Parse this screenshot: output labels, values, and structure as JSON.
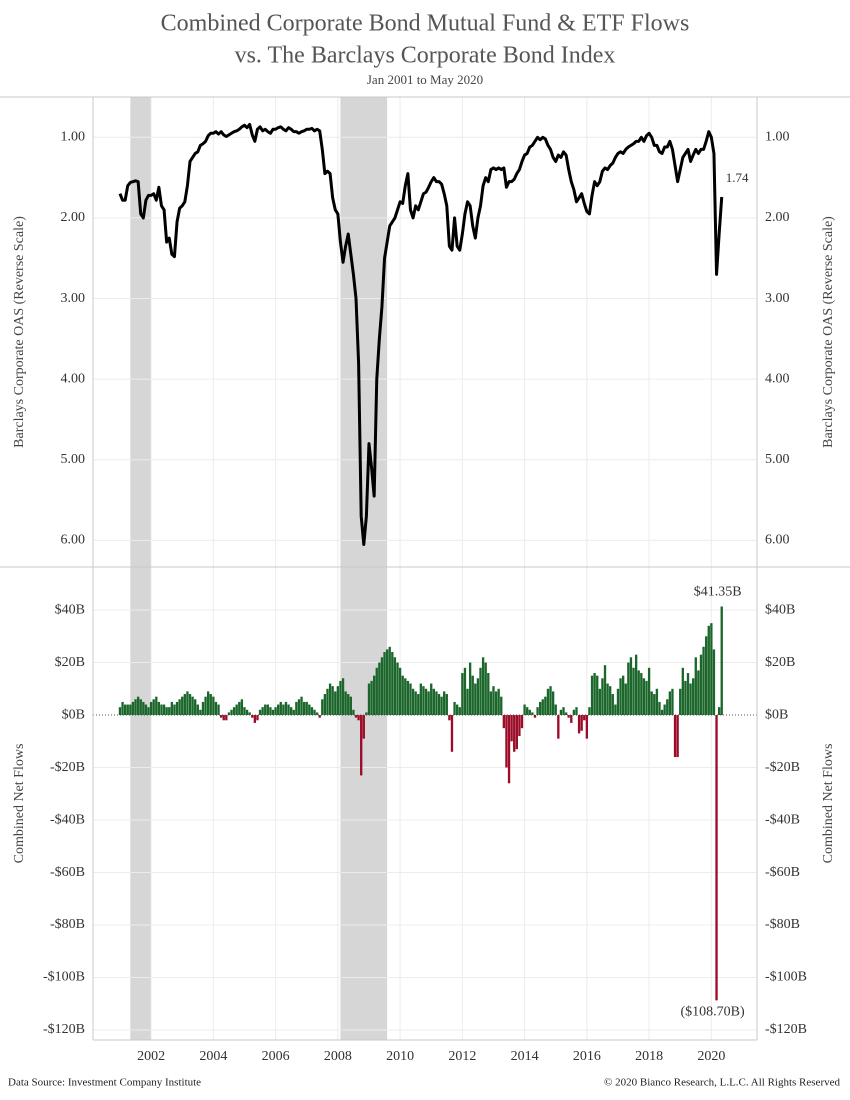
{
  "chart_data": {
    "type": "combo",
    "title": [
      "Combined Corporate Bond Mutual Fund & ETF Flows",
      "vs. The Barclays Corporate Bond Index"
    ],
    "subtitle": "Jan 2001 to May 2020",
    "source": "Data Source: Investment Company Institute",
    "copyright": "© 2020 Bianco Research, L.L.C. All Rights Reserved",
    "categories": [
      null,
      null,
      null,
      null,
      null,
      null,
      null,
      null,
      null,
      null,
      null,
      null,
      "2002",
      null,
      null,
      null,
      null,
      null,
      null,
      null,
      null,
      null,
      null,
      null,
      null,
      null,
      null,
      null,
      null,
      null,
      null,
      null,
      null,
      null,
      null,
      null,
      "2004",
      null,
      null,
      null,
      null,
      null,
      null,
      null,
      null,
      null,
      null,
      null,
      null,
      null,
      null,
      null,
      null,
      null,
      null,
      null,
      null,
      null,
      null,
      null,
      "2006",
      null,
      null,
      null,
      null,
      null,
      null,
      null,
      null,
      null,
      null,
      null,
      null,
      null,
      null,
      null,
      null,
      null,
      null,
      null,
      null,
      null,
      null,
      null,
      "2008",
      null,
      null,
      null,
      null,
      null,
      null,
      null,
      null,
      null,
      null,
      null,
      null,
      null,
      null,
      null,
      null,
      null,
      null,
      null,
      null,
      null,
      null,
      null,
      "2010",
      null,
      null,
      null,
      null,
      null,
      null,
      null,
      null,
      null,
      null,
      null,
      null,
      null,
      null,
      null,
      null,
      null,
      null,
      null,
      null,
      null,
      null,
      null,
      "2012",
      null,
      null,
      null,
      null,
      null,
      null,
      null,
      null,
      null,
      null,
      null,
      null,
      null,
      null,
      null,
      null,
      null,
      null,
      null,
      null,
      null,
      null,
      null,
      "2014",
      null,
      null,
      null,
      null,
      null,
      null,
      null,
      null,
      null,
      null,
      null,
      null,
      null,
      null,
      null,
      null,
      null,
      null,
      null,
      null,
      null,
      null,
      null,
      "2016",
      null,
      null,
      null,
      null,
      null,
      null,
      null,
      null,
      null,
      null,
      null,
      null,
      null,
      null,
      null,
      null,
      null,
      null,
      null,
      null,
      null,
      null,
      null,
      "2018",
      null,
      null,
      null,
      null,
      null,
      null,
      null,
      null,
      null,
      null,
      null,
      null,
      null,
      null,
      null,
      null,
      null,
      null,
      null,
      null,
      null,
      null,
      null,
      "2020",
      null,
      null,
      null,
      null
    ],
    "grid": true,
    "panels": [
      {
        "ylabel": "Barclays Corporate OAS (Reverse Scale)",
        "reverse": true,
        "ylim": [
          0.5,
          6.33
        ],
        "yticks": [
          {
            "value": 1,
            "label": "1.00"
          },
          {
            "value": 2,
            "label": "2.00"
          },
          {
            "value": 3,
            "label": "3.00"
          },
          {
            "value": 4,
            "label": "4.00"
          },
          {
            "value": 5,
            "label": "5.00"
          },
          {
            "value": 6,
            "label": "6.00"
          }
        ],
        "series": [
          {
            "type": "line",
            "color": "#000000",
            "values": [
              1.7,
              1.78,
              1.78,
              1.6,
              1.56,
              1.55,
              1.54,
              1.55,
              1.95,
              2.0,
              1.78,
              1.72,
              1.72,
              1.7,
              1.78,
              1.62,
              1.85,
              1.9,
              2.3,
              2.25,
              2.45,
              2.48,
              2.05,
              1.88,
              1.85,
              1.8,
              1.6,
              1.3,
              1.25,
              1.2,
              1.18,
              1.1,
              1.08,
              1.05,
              0.98,
              0.95,
              0.95,
              0.93,
              0.96,
              0.93,
              0.97,
              0.99,
              0.97,
              0.95,
              0.93,
              0.92,
              0.9,
              0.87,
              0.85,
              0.88,
              0.84,
              0.97,
              1.05,
              0.9,
              0.87,
              0.92,
              0.9,
              0.93,
              0.95,
              0.9,
              0.9,
              0.88,
              0.87,
              0.9,
              0.92,
              0.88,
              0.9,
              0.93,
              0.93,
              0.95,
              0.93,
              0.92,
              0.9,
              0.9,
              0.89,
              0.92,
              0.9,
              0.92,
              1.15,
              1.45,
              1.42,
              1.45,
              1.75,
              1.9,
              1.95,
              2.3,
              2.55,
              2.35,
              2.2,
              2.45,
              2.7,
              3.0,
              3.8,
              5.7,
              6.05,
              5.7,
              4.8,
              5.1,
              5.45,
              4.0,
              3.5,
              3.1,
              2.5,
              2.3,
              2.1,
              2.05,
              2.0,
              1.9,
              1.8,
              1.82,
              1.6,
              1.45,
              1.9,
              2.0,
              1.85,
              1.9,
              1.8,
              1.7,
              1.68,
              1.62,
              1.55,
              1.5,
              1.55,
              1.55,
              1.58,
              1.7,
              1.85,
              2.35,
              2.4,
              2.0,
              2.35,
              2.4,
              2.2,
              1.95,
              1.8,
              1.85,
              2.1,
              2.25,
              2.0,
              1.85,
              1.6,
              1.5,
              1.55,
              1.4,
              1.38,
              1.4,
              1.38,
              1.4,
              1.38,
              1.62,
              1.55,
              1.55,
              1.52,
              1.45,
              1.4,
              1.3,
              1.22,
              1.2,
              1.12,
              1.1,
              1.05,
              1.0,
              1.03,
              1.0,
              1.02,
              1.1,
              1.15,
              1.25,
              1.3,
              1.22,
              1.25,
              1.18,
              1.22,
              1.4,
              1.55,
              1.65,
              1.8,
              1.75,
              1.7,
              1.82,
              1.92,
              1.95,
              1.72,
              1.55,
              1.6,
              1.55,
              1.42,
              1.38,
              1.4,
              1.35,
              1.32,
              1.25,
              1.2,
              1.18,
              1.2,
              1.15,
              1.12,
              1.1,
              1.08,
              1.05,
              1.05,
              1.0,
              1.05,
              0.98,
              0.95,
              1.0,
              1.1,
              1.1,
              1.18,
              1.2,
              1.12,
              1.12,
              1.05,
              1.15,
              1.35,
              1.55,
              1.4,
              1.25,
              1.2,
              1.15,
              1.3,
              1.22,
              1.15,
              1.2,
              1.15,
              1.15,
              1.05,
              0.93,
              1.0,
              1.2,
              2.7,
              2.2,
              1.74
            ],
            "value_labels": {
              "232": "1.74"
            }
          }
        ]
      },
      {
        "ylabel": "Combined Net Flows",
        "reverse": false,
        "ylim": [
          -123.8,
          56.4
        ],
        "yticks": [
          {
            "value": 40,
            "label": "$40B"
          },
          {
            "value": 20,
            "label": "$20B"
          },
          {
            "value": 0,
            "label": "$0B"
          },
          {
            "value": -20,
            "label": "-$20B"
          },
          {
            "value": -40,
            "label": "-$40B"
          },
          {
            "value": -60,
            "label": "-$60B"
          },
          {
            "value": -80,
            "label": "-$80B"
          },
          {
            "value": -100,
            "label": "-$100B"
          },
          {
            "value": -120,
            "label": "-$120B"
          }
        ],
        "series": [
          {
            "type": "bar",
            "color": "#1b662b",
            "negative_color": "#9a0c28",
            "values": [
              3,
              5,
              4,
              4,
              4,
              5,
              6,
              7,
              6,
              5,
              4,
              3,
              5,
              6,
              7,
              5,
              4,
              4,
              3,
              3,
              5,
              4,
              5,
              6,
              7,
              8,
              9,
              8,
              7,
              6,
              4,
              2,
              5,
              7,
              9,
              8,
              7,
              5,
              4,
              -1,
              -2,
              -2,
              1,
              2,
              3,
              4,
              5,
              6,
              3,
              2,
              1,
              -1,
              -3,
              -2,
              2,
              3,
              4,
              4,
              3,
              2,
              3,
              4,
              5,
              4,
              5,
              4,
              3,
              2,
              5,
              6,
              7,
              5,
              5,
              4,
              3,
              2,
              1,
              -1,
              6,
              8,
              10,
              12,
              11,
              9,
              11,
              13,
              14,
              9,
              8,
              7,
              2,
              -1,
              -2,
              -23,
              -9,
              1,
              12,
              13,
              15,
              18,
              20,
              22,
              24,
              25,
              26,
              24,
              22,
              20,
              18,
              15,
              14,
              13,
              12,
              10,
              9,
              8,
              12,
              11,
              10,
              9,
              12,
              10,
              9,
              8,
              7,
              9,
              8,
              -2,
              -14,
              5,
              4,
              3,
              16,
              18,
              10,
              20,
              15,
              12,
              14,
              18,
              22,
              20,
              16,
              9,
              11,
              9,
              10,
              7,
              -5,
              -20,
              -26,
              -10,
              -14,
              -13,
              -8,
              -5,
              4,
              3,
              2,
              1,
              -1,
              3,
              5,
              6,
              7,
              10,
              11,
              9,
              4,
              -9,
              2,
              3,
              1,
              -1,
              -3,
              2,
              3,
              -7,
              -6,
              -2,
              -9,
              3,
              15,
              16,
              15,
              10,
              14,
              19,
              12,
              11,
              8,
              4,
              10,
              14,
              15,
              12,
              20,
              22,
              18,
              23,
              17,
              16,
              14,
              13,
              18,
              9,
              8,
              10,
              5,
              2,
              4,
              6,
              9,
              10,
              -16,
              -16,
              10,
              18,
              13,
              16,
              12,
              14,
              22,
              17,
              23,
              26,
              30,
              34,
              35,
              25,
              -108.7,
              3,
              41.35
            ],
            "value_labels": {
              "230": "($108.70B)",
              "232": "$41.35B"
            }
          }
        ]
      }
    ]
  }
}
